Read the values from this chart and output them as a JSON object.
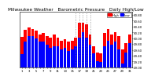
{
  "title": "Milwaukee Weather   Barometric Pressure   Daily High/Low",
  "background_color": "#ffffff",
  "plot_bg_color": "#ffffff",
  "ylim": [
    29.0,
    30.9
  ],
  "yticks": [
    29.0,
    29.2,
    29.4,
    29.6,
    29.8,
    30.0,
    30.2,
    30.4,
    30.6,
    30.8
  ],
  "days": [
    1,
    2,
    3,
    4,
    5,
    6,
    7,
    8,
    9,
    10,
    11,
    12,
    13,
    14,
    15,
    16,
    17,
    18,
    19,
    20,
    21,
    22,
    23,
    24,
    25,
    26,
    27,
    28,
    29,
    30,
    31
  ],
  "high": [
    30.05,
    30.28,
    30.38,
    30.32,
    30.25,
    30.12,
    30.18,
    30.08,
    30.02,
    30.12,
    30.02,
    29.92,
    29.97,
    29.88,
    29.92,
    30.02,
    30.52,
    30.52,
    30.47,
    30.12,
    29.72,
    29.52,
    29.47,
    30.18,
    30.32,
    30.12,
    30.22,
    30.08,
    29.62,
    29.82,
    30.12
  ],
  "low": [
    29.45,
    29.88,
    30.08,
    30.08,
    29.98,
    29.88,
    29.88,
    29.78,
    29.68,
    29.72,
    29.72,
    29.62,
    29.67,
    29.57,
    29.62,
    29.72,
    30.02,
    30.22,
    30.02,
    29.78,
    29.48,
    29.22,
    29.18,
    29.72,
    29.92,
    29.78,
    29.88,
    29.62,
    29.12,
    29.52,
    29.82
  ],
  "high_color": "#ff0000",
  "low_color": "#0000ff",
  "dotted_lines_x": [
    15,
    16,
    17,
    18,
    19
  ],
  "legend_high": "High",
  "legend_low": "Low",
  "title_fontsize": 4.2,
  "tick_fontsize": 2.8,
  "legend_fontsize": 2.8
}
